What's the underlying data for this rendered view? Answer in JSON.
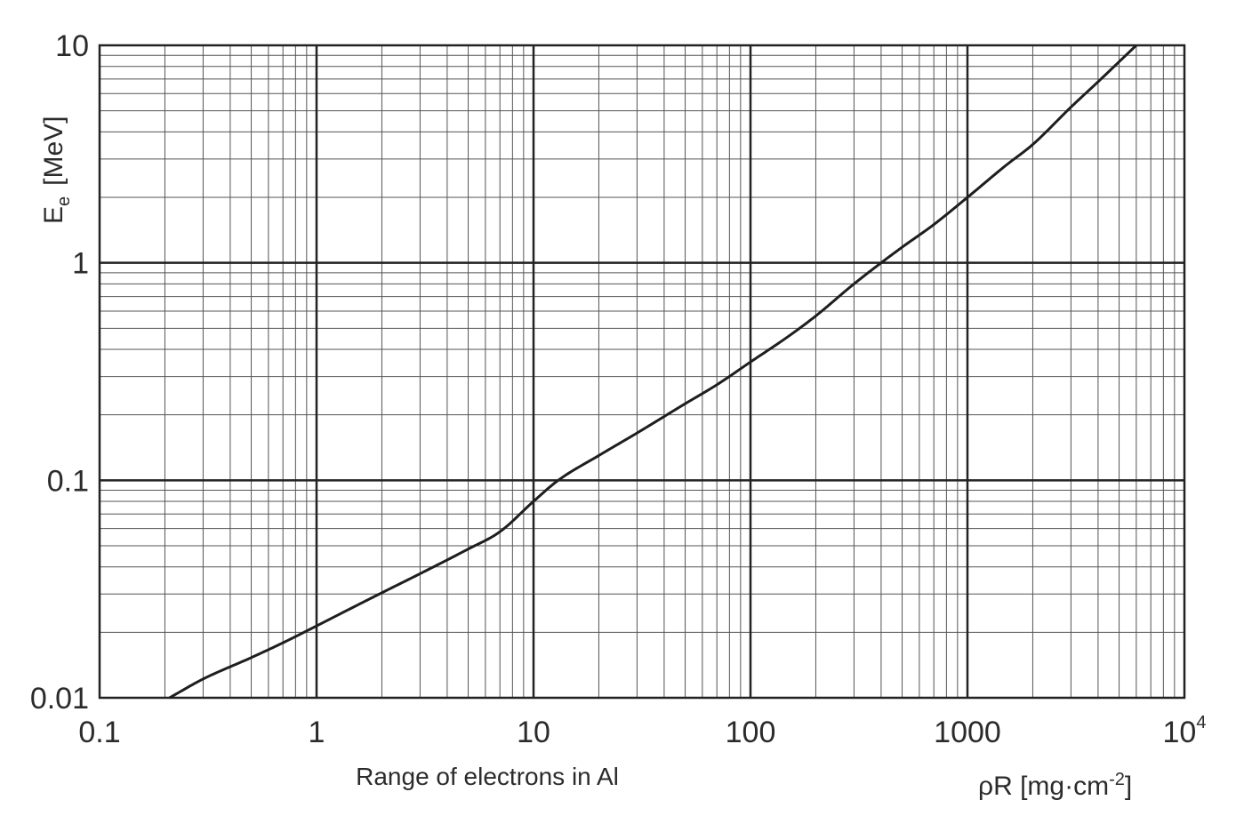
{
  "chart_data": {
    "type": "line",
    "title": "",
    "xscale": "log",
    "yscale": "log",
    "xlim": [
      0.1,
      10000
    ],
    "ylim": [
      0.01,
      10
    ],
    "grid": true,
    "legend": "none",
    "x_ticks": [
      {
        "value": 0.1,
        "label": "0.1"
      },
      {
        "value": 1,
        "label": "1"
      },
      {
        "value": 10,
        "label": "10"
      },
      {
        "value": 100,
        "label": "100"
      },
      {
        "value": 1000,
        "label": "1000"
      },
      {
        "value": 10000,
        "base": "10",
        "exp": "4"
      }
    ],
    "y_ticks": [
      {
        "value": 0.01,
        "label": "0.01"
      },
      {
        "value": 0.1,
        "label": "0.1"
      },
      {
        "value": 1,
        "label": "1"
      },
      {
        "value": 10,
        "label": "10"
      }
    ],
    "xlabel": "Range of electrons in Al",
    "xunit": {
      "base": "ρR [mg·cm",
      "exp": "-2",
      "close": "]"
    },
    "ylabel": {
      "symbol": "E",
      "sub": "e",
      "unit": "[MeV]"
    },
    "line_color": "#1e1e1e",
    "series": [
      {
        "x": [
          0.21,
          0.3,
          0.5,
          0.7,
          1,
          1.5,
          2,
          3,
          5,
          7,
          10,
          13,
          20,
          30,
          50,
          70,
          100,
          150,
          200,
          300,
          400,
          500,
          700,
          1000,
          1500,
          2000,
          3000,
          4000,
          6000
        ],
        "y": [
          0.01,
          0.0122,
          0.0153,
          0.0179,
          0.0214,
          0.0263,
          0.0304,
          0.0372,
          0.0483,
          0.058,
          0.08,
          0.1,
          0.13,
          0.165,
          0.225,
          0.275,
          0.35,
          0.46,
          0.57,
          0.8,
          1.0,
          1.18,
          1.5,
          2.0,
          2.8,
          3.5,
          5.2,
          6.8,
          10
        ]
      }
    ]
  }
}
